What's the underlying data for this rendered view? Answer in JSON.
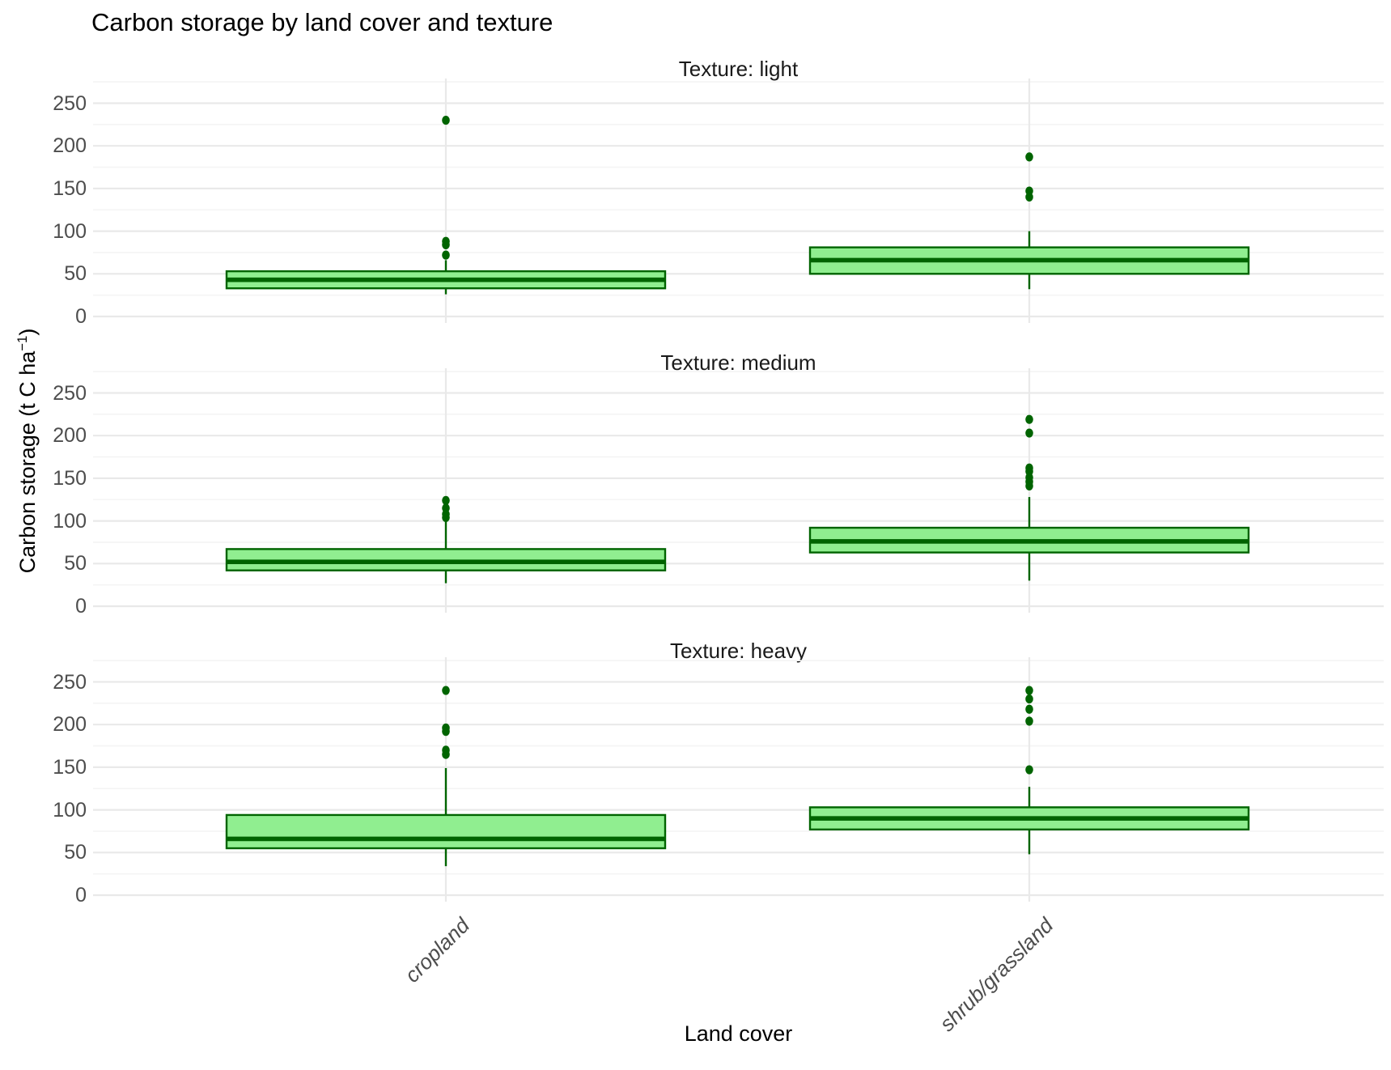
{
  "title": "Carbon storage by land cover and texture",
  "x_axis": {
    "title": "Land cover",
    "categories": [
      "cropland",
      "shrub/grassland"
    ]
  },
  "y_axis": {
    "title_prefix": "Carbon storage (t C ha",
    "title_sup": "−1",
    "title_suffix": ")",
    "tick_values": [
      0,
      50,
      100,
      150,
      200,
      250
    ]
  },
  "colors": {
    "box_fill": "#90EE90",
    "box_stroke": "#006400",
    "grid_major": "#E9E9E9",
    "grid_minor": "#F4F4F4",
    "tick_text": "#4D4D4D",
    "strip_text": "#1A1A1A",
    "title_text": "#000000"
  },
  "chart_data": {
    "type": "boxplot",
    "title": "Carbon storage by land cover and texture",
    "xlabel": "Land cover",
    "ylabel": "Carbon storage (t C ha^-1)",
    "ylim": [
      0,
      260
    ],
    "y_major_ticks": [
      0,
      50,
      100,
      150,
      200,
      250
    ],
    "y_minor_gridlines": [
      25,
      75,
      125,
      175,
      225,
      275
    ],
    "grid": "on",
    "legend": "none",
    "facet_variable": "Texture",
    "categories": [
      "cropland",
      "shrub/grassland"
    ],
    "facets": [
      {
        "label": "Texture: light",
        "boxes": [
          {
            "category": "cropland",
            "whisker_low": 26,
            "q1": 33,
            "median": 43,
            "q3": 53,
            "whisker_high": 66,
            "outliers": [
              72,
              84,
              88,
              230
            ]
          },
          {
            "category": "shrub/grassland",
            "whisker_low": 32,
            "q1": 50,
            "median": 66,
            "q3": 81,
            "whisker_high": 100,
            "outliers": [
              140,
              147,
              187
            ]
          }
        ]
      },
      {
        "label": "Texture: medium",
        "boxes": [
          {
            "category": "cropland",
            "whisker_low": 27,
            "q1": 42,
            "median": 52,
            "q3": 67,
            "whisker_high": 100,
            "outliers": [
              104,
              108,
              115,
              124
            ]
          },
          {
            "category": "shrub/grassland",
            "whisker_low": 30,
            "q1": 63,
            "median": 76,
            "q3": 92,
            "whisker_high": 128,
            "outliers": [
              141,
              146,
              151,
              158,
              162,
              203,
              219
            ]
          }
        ]
      },
      {
        "label": "Texture: heavy",
        "boxes": [
          {
            "category": "cropland",
            "whisker_low": 34,
            "q1": 55,
            "median": 66,
            "q3": 94,
            "whisker_high": 149,
            "outliers": [
              165,
              170,
              192,
              196,
              240
            ]
          },
          {
            "category": "shrub/grassland",
            "whisker_low": 48,
            "q1": 77,
            "median": 90,
            "q3": 103,
            "whisker_high": 127,
            "outliers": [
              147,
              204,
              218,
              230,
              240
            ]
          }
        ]
      }
    ]
  }
}
